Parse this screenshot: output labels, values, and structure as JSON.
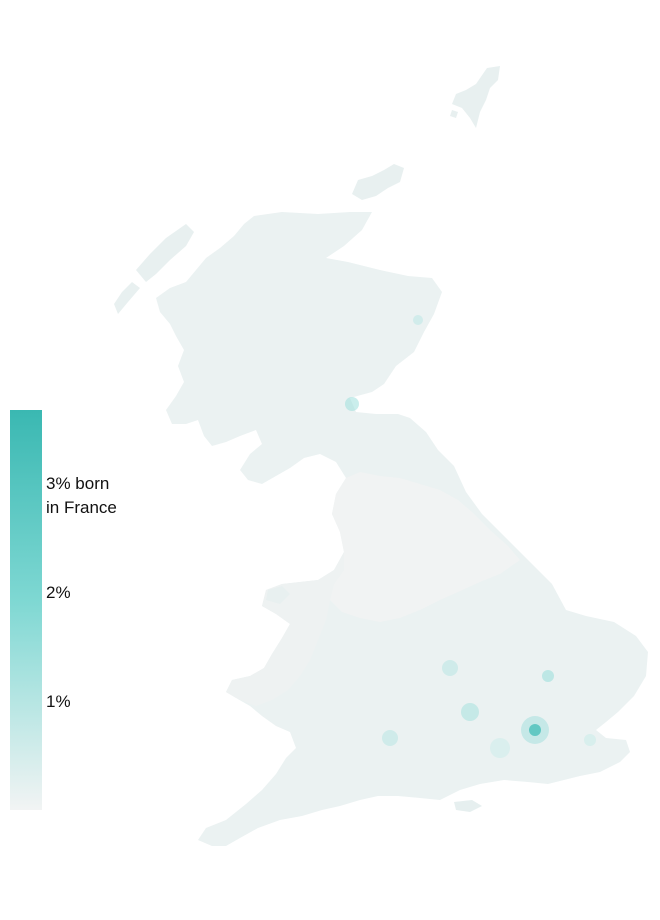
{
  "legend": {
    "labels": [
      "3% born\nin France",
      "2%",
      "1%"
    ],
    "color_low": "#f2f4f4",
    "color_mid": "#7fd8d3",
    "color_high": "#3ab8b2"
  },
  "map": {
    "fill_base": "#eaf0f0",
    "fill_light": "#f0f2f2",
    "hotspot_color": "#3ab8b2"
  }
}
